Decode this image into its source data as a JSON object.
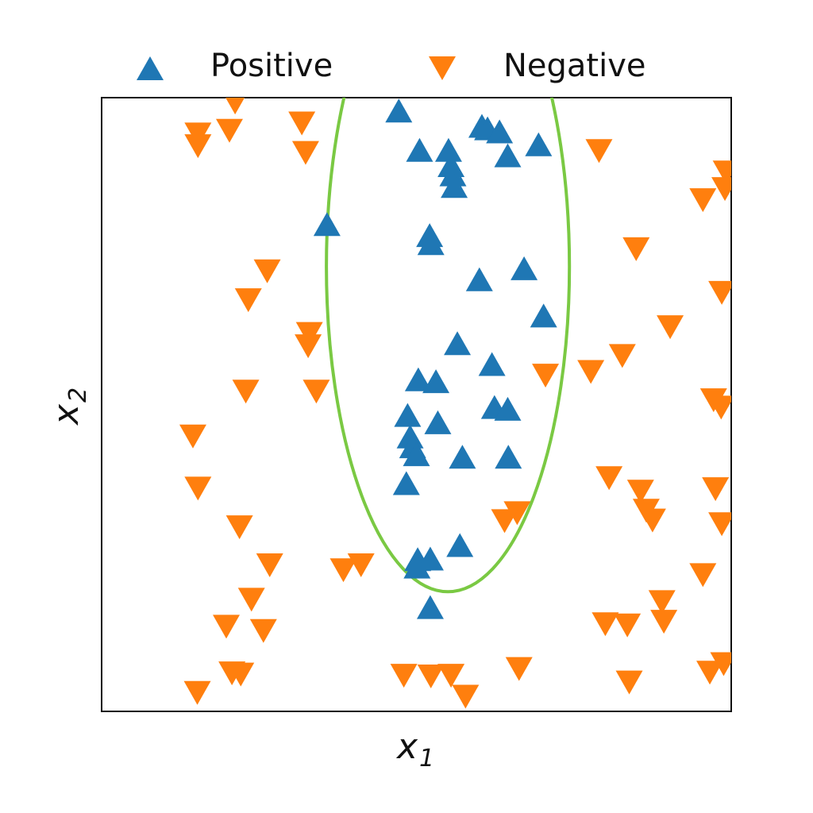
{
  "chart_data": {
    "type": "scatter",
    "title": "",
    "xlabel": "x",
    "xlabel_sub": "1",
    "ylabel": "x",
    "ylabel_sub": "2",
    "xlim": [
      0,
      1
    ],
    "ylim": [
      0,
      1
    ],
    "ticks_shown": false,
    "grid": false,
    "legend_placement": "top",
    "colors": {
      "positive": "#1f77b4",
      "negative": "#ff7f0e",
      "boundary": "#7ac943"
    },
    "series": [
      {
        "name": "Positive",
        "marker": "triangle-up",
        "points": [
          [
            0.472,
            0.979
          ],
          [
            0.604,
            0.954
          ],
          [
            0.613,
            0.95
          ],
          [
            0.632,
            0.945
          ],
          [
            0.694,
            0.924
          ],
          [
            0.505,
            0.915
          ],
          [
            0.551,
            0.915
          ],
          [
            0.645,
            0.906
          ],
          [
            0.555,
            0.89
          ],
          [
            0.558,
            0.875
          ],
          [
            0.56,
            0.856
          ],
          [
            0.358,
            0.794
          ],
          [
            0.521,
            0.776
          ],
          [
            0.523,
            0.763
          ],
          [
            0.671,
            0.722
          ],
          [
            0.6,
            0.704
          ],
          [
            0.702,
            0.645
          ],
          [
            0.565,
            0.6
          ],
          [
            0.62,
            0.566
          ],
          [
            0.503,
            0.541
          ],
          [
            0.531,
            0.538
          ],
          [
            0.624,
            0.496
          ],
          [
            0.645,
            0.493
          ],
          [
            0.486,
            0.483
          ],
          [
            0.534,
            0.471
          ],
          [
            0.49,
            0.448
          ],
          [
            0.494,
            0.432
          ],
          [
            0.5,
            0.419
          ],
          [
            0.573,
            0.415
          ],
          [
            0.646,
            0.415
          ],
          [
            0.484,
            0.372
          ],
          [
            0.569,
            0.271
          ],
          [
            0.502,
            0.248
          ],
          [
            0.522,
            0.249
          ],
          [
            0.501,
            0.236
          ],
          [
            0.522,
            0.17
          ]
        ]
      },
      {
        "name": "Negative",
        "marker": "triangle-down",
        "points": [
          [
            0.212,
            0.992
          ],
          [
            0.318,
            0.958
          ],
          [
            0.153,
            0.94
          ],
          [
            0.203,
            0.946
          ],
          [
            0.153,
            0.921
          ],
          [
            0.324,
            0.91
          ],
          [
            0.79,
            0.913
          ],
          [
            0.992,
            0.878
          ],
          [
            0.955,
            0.833
          ],
          [
            0.99,
            0.851
          ],
          [
            0.849,
            0.753
          ],
          [
            0.263,
            0.717
          ],
          [
            0.233,
            0.67
          ],
          [
            0.985,
            0.682
          ],
          [
            0.903,
            0.626
          ],
          [
            0.33,
            0.615
          ],
          [
            0.827,
            0.579
          ],
          [
            0.328,
            0.595
          ],
          [
            0.705,
            0.547
          ],
          [
            0.777,
            0.553
          ],
          [
            0.229,
            0.521
          ],
          [
            0.341,
            0.521
          ],
          [
            0.972,
            0.507
          ],
          [
            0.984,
            0.495
          ],
          [
            0.145,
            0.448
          ],
          [
            0.806,
            0.38
          ],
          [
            0.153,
            0.363
          ],
          [
            0.856,
            0.358
          ],
          [
            0.975,
            0.362
          ],
          [
            0.865,
            0.327
          ],
          [
            0.875,
            0.311
          ],
          [
            0.66,
            0.323
          ],
          [
            0.64,
            0.31
          ],
          [
            0.219,
            0.3
          ],
          [
            0.985,
            0.305
          ],
          [
            0.267,
            0.238
          ],
          [
            0.384,
            0.23
          ],
          [
            0.412,
            0.238
          ],
          [
            0.955,
            0.222
          ],
          [
            0.238,
            0.182
          ],
          [
            0.89,
            0.178
          ],
          [
            0.198,
            0.138
          ],
          [
            0.257,
            0.131
          ],
          [
            0.8,
            0.142
          ],
          [
            0.835,
            0.14
          ],
          [
            0.893,
            0.146
          ],
          [
            0.988,
            0.077
          ],
          [
            0.48,
            0.058
          ],
          [
            0.523,
            0.057
          ],
          [
            0.555,
            0.058
          ],
          [
            0.663,
            0.069
          ],
          [
            0.966,
            0.063
          ],
          [
            0.207,
            0.062
          ],
          [
            0.221,
            0.06
          ],
          [
            0.838,
            0.047
          ],
          [
            0.152,
            0.03
          ],
          [
            0.578,
            0.024
          ]
        ]
      }
    ],
    "decision_boundary": {
      "shape": "ellipse",
      "center": [
        0.55,
        0.725
      ],
      "rx": 0.193,
      "ry": 0.53
    }
  }
}
